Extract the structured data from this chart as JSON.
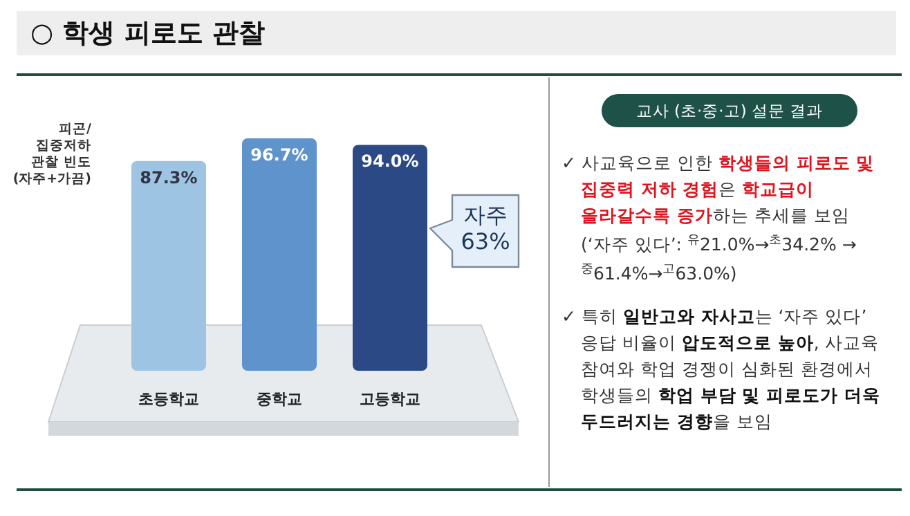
{
  "chart_data": [
    {
      "type": "bar",
      "title": "○ 학생 피로도 관찰",
      "ylabel": "피곤/\n집중저하\n관찰 빈도\n(자주+가끔)",
      "categories": [
        "초등학교",
        "중학교",
        "고등학교"
      ],
      "values": [
        87.3,
        96.7,
        94.0
      ],
      "colors": [
        "#9dc4e3",
        "#5f93cc",
        "#2b4a85"
      ],
      "data_labels": true,
      "value_labels": [
        "87.3%",
        "96.7%",
        "94.0%"
      ],
      "annotations": [
        "자주\n63%"
      ]
    },
    {
      "type": "other",
      "title": "교사 (초·중·고) 설문 결과",
      "annotations": [
        "✓ 사교육으로 인한 **학생들의 피로도 및 집중력 저하 경험**은 **학교급이 올라갈수록 증가**하는 추세를 보임 (‘자주 있다’: $^{유}$21.0%→$^{초}$34.2% →$^{중}$61.4%→$^{고}$63.0%)",
        "✓ 특히 **일반고와 자사고**는 ‘자주 있다’ 응답 비율이 **압도적으로 높아**, 사교육 참여와 학업 경쟁이 심화된 환경에서 학생들의 **학업 부담 및 피로도가 더욱 두드러지는 경향**을 보임"
      ]
    }
  ]
}
